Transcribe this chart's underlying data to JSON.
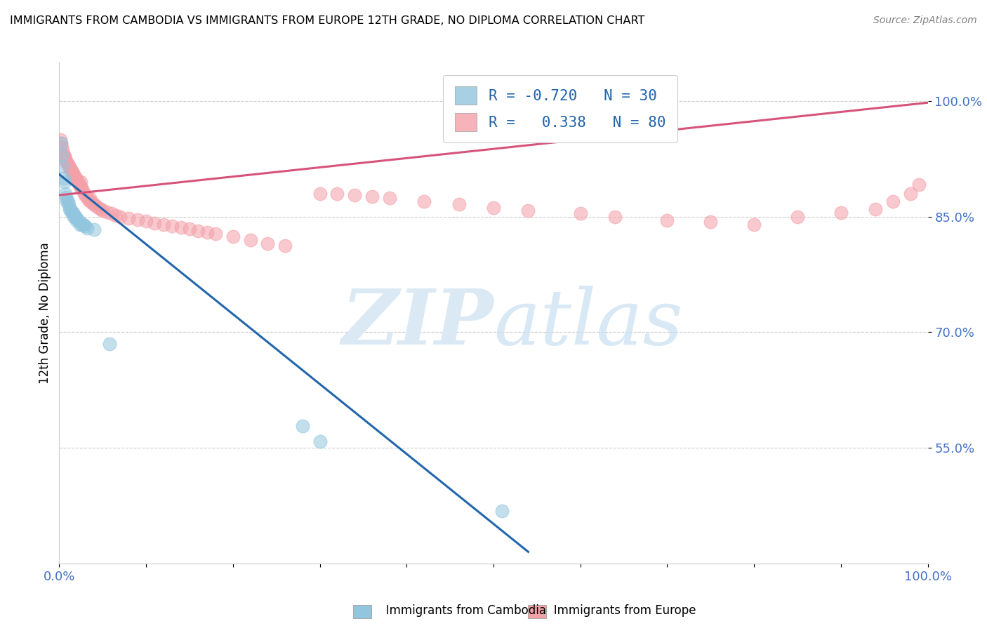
{
  "title": "IMMIGRANTS FROM CAMBODIA VS IMMIGRANTS FROM EUROPE 12TH GRADE, NO DIPLOMA CORRELATION CHART",
  "source": "Source: ZipAtlas.com",
  "ylabel": "12th Grade, No Diploma",
  "xlim": [
    0.0,
    1.0
  ],
  "ylim": [
    0.4,
    1.05
  ],
  "yticks": [
    0.55,
    0.7,
    0.85,
    1.0
  ],
  "ytick_labels": [
    "55.0%",
    "70.0%",
    "85.0%",
    "100.0%"
  ],
  "legend_r_cambodia": "-0.720",
  "legend_n_cambodia": "30",
  "legend_r_europe": "0.338",
  "legend_n_europe": "80",
  "cambodia_color": "#92c5de",
  "europe_color": "#f4a0a8",
  "line_cambodia_color": "#2166ac",
  "line_europe_color": "#d6537a",
  "cam_line_x": [
    0.0,
    0.54
  ],
  "cam_line_y": [
    0.905,
    0.415
  ],
  "eur_line_x": [
    0.0,
    1.0
  ],
  "eur_line_y": [
    0.878,
    0.998
  ],
  "cambodia_points_x": [
    0.002,
    0.003,
    0.004,
    0.005,
    0.006,
    0.007,
    0.008,
    0.009,
    0.01,
    0.011,
    0.012,
    0.013,
    0.014,
    0.015,
    0.016,
    0.017,
    0.018,
    0.019,
    0.02,
    0.022,
    0.024,
    0.026,
    0.028,
    0.03,
    0.032,
    0.04,
    0.058,
    0.28,
    0.3,
    0.51
  ],
  "cambodia_points_y": [
    0.945,
    0.93,
    0.915,
    0.9,
    0.895,
    0.88,
    0.875,
    0.87,
    0.87,
    0.865,
    0.86,
    0.86,
    0.855,
    0.855,
    0.855,
    0.85,
    0.85,
    0.85,
    0.845,
    0.845,
    0.84,
    0.84,
    0.84,
    0.838,
    0.835,
    0.833,
    0.685,
    0.578,
    0.558,
    0.468
  ],
  "europe_points_x": [
    0.001,
    0.002,
    0.003,
    0.004,
    0.005,
    0.006,
    0.007,
    0.008,
    0.009,
    0.01,
    0.011,
    0.012,
    0.013,
    0.014,
    0.015,
    0.016,
    0.017,
    0.018,
    0.019,
    0.02,
    0.021,
    0.022,
    0.023,
    0.024,
    0.025,
    0.026,
    0.028,
    0.03,
    0.032,
    0.034,
    0.036,
    0.038,
    0.04,
    0.042,
    0.045,
    0.048,
    0.05,
    0.055,
    0.06,
    0.065,
    0.07,
    0.08,
    0.09,
    0.1,
    0.11,
    0.12,
    0.13,
    0.14,
    0.15,
    0.16,
    0.17,
    0.18,
    0.2,
    0.22,
    0.24,
    0.26,
    0.3,
    0.32,
    0.34,
    0.36,
    0.38,
    0.42,
    0.46,
    0.5,
    0.54,
    0.6,
    0.64,
    0.7,
    0.75,
    0.8,
    0.85,
    0.9,
    0.94,
    0.96,
    0.98,
    0.99,
    0.005,
    0.015,
    0.025,
    0.035
  ],
  "europe_points_y": [
    0.95,
    0.945,
    0.94,
    0.935,
    0.93,
    0.928,
    0.925,
    0.922,
    0.92,
    0.918,
    0.916,
    0.914,
    0.912,
    0.91,
    0.908,
    0.906,
    0.904,
    0.902,
    0.9,
    0.898,
    0.896,
    0.894,
    0.892,
    0.89,
    0.888,
    0.886,
    0.882,
    0.878,
    0.875,
    0.872,
    0.87,
    0.868,
    0.866,
    0.864,
    0.862,
    0.86,
    0.858,
    0.856,
    0.854,
    0.852,
    0.85,
    0.848,
    0.846,
    0.844,
    0.842,
    0.84,
    0.838,
    0.836,
    0.834,
    0.832,
    0.83,
    0.828,
    0.824,
    0.82,
    0.815,
    0.812,
    0.88,
    0.88,
    0.878,
    0.876,
    0.874,
    0.87,
    0.866,
    0.862,
    0.858,
    0.854,
    0.85,
    0.845,
    0.843,
    0.84,
    0.85,
    0.855,
    0.86,
    0.87,
    0.88,
    0.892,
    0.928,
    0.905,
    0.895,
    0.874
  ]
}
